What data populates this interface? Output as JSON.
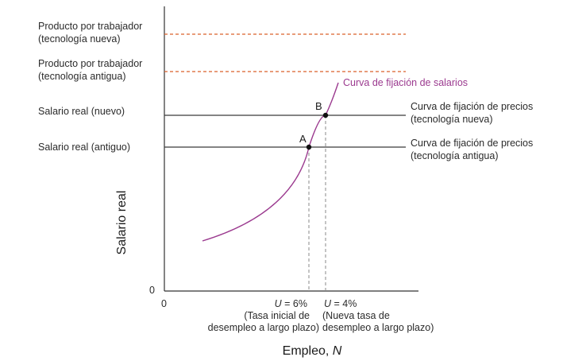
{
  "colors": {
    "axis": "#333333",
    "price_line": "#3a3a3a",
    "product_line": "#d9602a",
    "wage_curve": "#9b3a8f",
    "drop_line": "#8a8a8a"
  },
  "y_labels": {
    "product_new_1": "Producto por trabajador",
    "product_new_2": "(tecnología nueva)",
    "product_old_1": "Producto por trabajador",
    "product_old_2": "(tecnología antigua)",
    "wage_new": "Salario real (nuevo)",
    "wage_old": "Salario real (antiguo)",
    "zero": "0"
  },
  "x_labels": {
    "zero": "0",
    "u6_prefix": "U",
    "u6_value": " = 6%",
    "u6_line1": "(Tasa inicial de",
    "u6_line2": "desempleo a largo plazo)",
    "u4_prefix": "U",
    "u4_value": " = 4%",
    "u4_line1": "(Nueva tasa de",
    "u4_line2": "desempleo a largo plazo)"
  },
  "axes": {
    "y_title": "Salario real",
    "x_title_prefix": "Empleo, ",
    "x_title_var": "N"
  },
  "curves": {
    "wage_setting": "Curva de fijación de salarios",
    "price_new_1": "Curva de fijación de precios",
    "price_new_2": "(tecnología nueva)",
    "price_old_1": "Curva de fijación de precios",
    "price_old_2": "(tecnología antigua)"
  },
  "points": {
    "a": "A",
    "b": "B"
  }
}
